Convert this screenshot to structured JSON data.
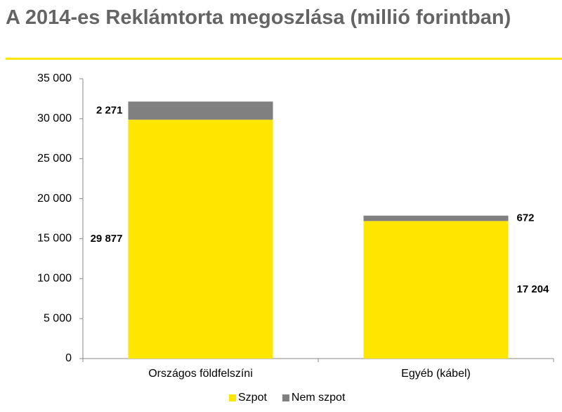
{
  "chart_data": {
    "type": "stacked_bar",
    "title": "A 2014-es Reklámtorta megoszlása (millió forintban)",
    "categories": [
      "Országos földfelszíni",
      "Egyéb (kábel)"
    ],
    "series": [
      {
        "name": "Szpot",
        "color": "#ffe600",
        "values": [
          29877,
          17204
        ],
        "value_labels": [
          "29 877",
          "17 204"
        ]
      },
      {
        "name": "Nem szpot",
        "color": "#808080",
        "values": [
          2271,
          672
        ],
        "value_labels": [
          "2 271",
          "672"
        ]
      }
    ],
    "ylim": [
      0,
      35000
    ],
    "yticks": [
      0,
      {
        "value": 5000,
        "label": "5 000"
      },
      {
        "value": 10000,
        "label": "10 000"
      },
      {
        "value": 15000,
        "label": "15 000"
      },
      {
        "value": 20000,
        "label": "20 000"
      },
      {
        "value": 25000,
        "label": "25 000"
      },
      {
        "value": 30000,
        "label": "30 000"
      },
      {
        "value": 35000,
        "label": "35 000"
      }
    ],
    "grid": false,
    "legend": "bottom"
  }
}
